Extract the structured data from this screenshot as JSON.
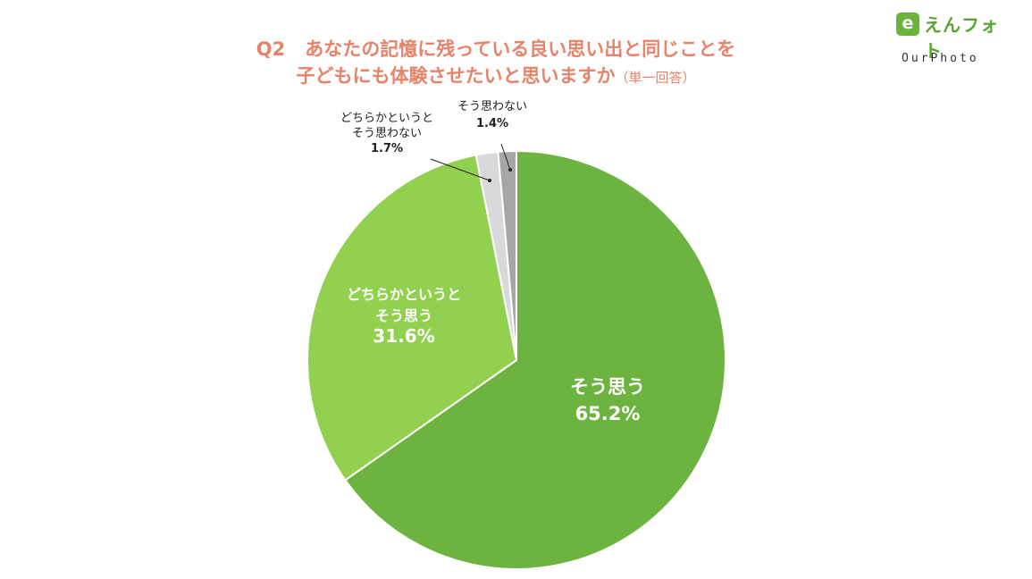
{
  "title": {
    "q": "Q2",
    "line1": "あなたの記憶に残っている良い思い出と同じことを",
    "line2": "子どもにも体験させたいと思いますか",
    "note": "（単一回答）"
  },
  "logo": {
    "mark": "e",
    "name": "えんフォト",
    "sub": "OurPhoto"
  },
  "colors": {
    "title": "#e8836a",
    "slice_1": "#6db33f",
    "slice_2": "#92d050",
    "slice_3": "#d9d9d9",
    "slice_4": "#a6a6a6"
  },
  "chart_data": {
    "type": "pie",
    "start": "12 o'clock",
    "direction": "clockwise",
    "slices": [
      {
        "label_lines": [
          "そう思う"
        ],
        "value": 65.2,
        "value_label": "65.2%",
        "color": "#6db33f",
        "label_position": "inside"
      },
      {
        "label_lines": [
          "どちらかというと",
          "そう思う"
        ],
        "value": 31.6,
        "value_label": "31.6%",
        "color": "#92d050",
        "label_position": "inside"
      },
      {
        "label_lines": [
          "どちらかというと",
          "そう思わない"
        ],
        "value": 1.7,
        "value_label": "1.7%",
        "color": "#d9d9d9",
        "label_position": "outside"
      },
      {
        "label_lines": [
          "そう思わない"
        ],
        "value": 1.4,
        "value_label": "1.4%",
        "color": "#a6a6a6",
        "label_position": "outside"
      }
    ]
  }
}
